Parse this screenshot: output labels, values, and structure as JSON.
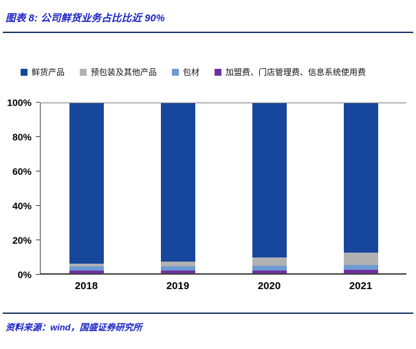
{
  "header": {
    "title": "图表 8: 公司鲜货业务占比比近 90%"
  },
  "footer": {
    "source": "资料来源：wind，国盛证券研究所"
  },
  "colors": {
    "accent_text": "#1b24c4",
    "divider": "#1f3864",
    "axis": "#404040"
  },
  "chart_data": {
    "type": "bar",
    "stacked": true,
    "title": "公司鲜货业务占比比近 90%",
    "categories": [
      "2018",
      "2019",
      "2020",
      "2021"
    ],
    "series": [
      {
        "name": "鲜货产品",
        "color": "#17479d",
        "values": [
          94.5,
          93.0,
          90.5,
          88.0
        ]
      },
      {
        "name": "预包装及其他产品",
        "color": "#b1b1b1",
        "values": [
          1.5,
          3.0,
          5.0,
          7.0
        ]
      },
      {
        "name": "包材",
        "color": "#6c9bd3",
        "values": [
          2.5,
          2.5,
          3.0,
          3.0
        ]
      },
      {
        "name": "加盟费、门店管理费、信息系统使用费",
        "color": "#7030a0",
        "values": [
          1.5,
          1.5,
          1.5,
          2.0
        ]
      }
    ],
    "stack_order_bottom_to_top": [
      "加盟费、门店管理费、信息系统使用费",
      "包材",
      "预包装及其他产品",
      "鲜货产品"
    ],
    "ylim": [
      0,
      100
    ],
    "yticks": [
      100,
      80,
      60,
      40,
      20,
      0
    ],
    "ytick_suffix": "%",
    "xlabel": "",
    "ylabel": "",
    "grid": false,
    "legend_position": "top"
  }
}
